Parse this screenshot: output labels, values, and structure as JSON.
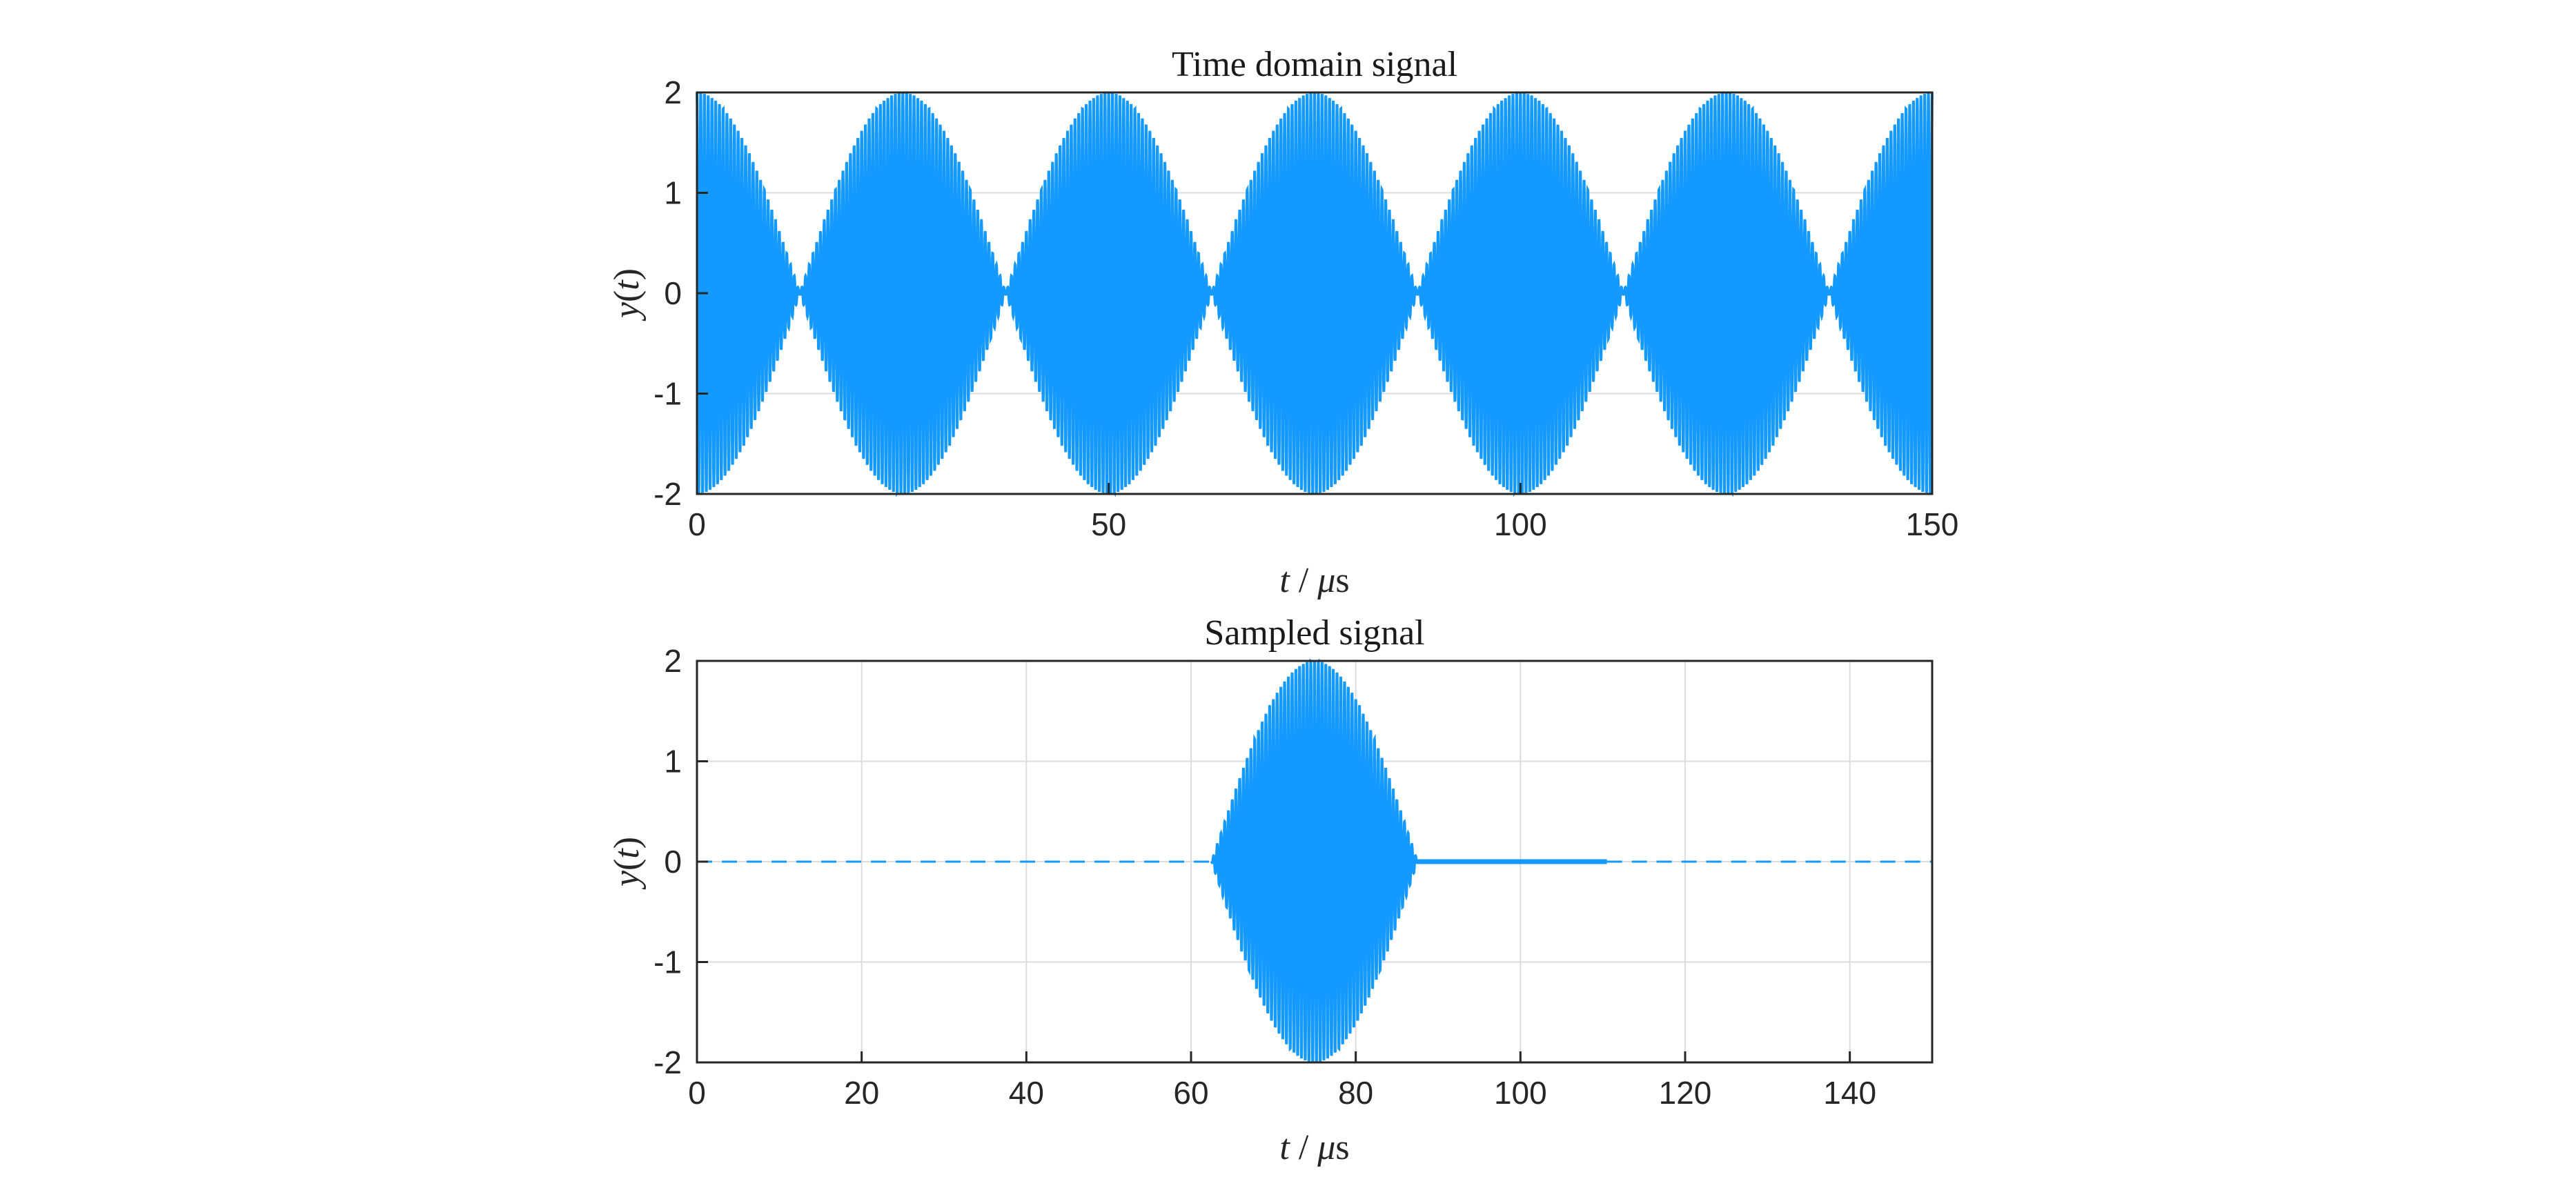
{
  "colors": {
    "signal": "#1499ff",
    "grid": "#dcdcdc",
    "axis": "#262626"
  },
  "chart_data": [
    {
      "type": "line",
      "title": "Time domain signal",
      "xlabel": {
        "var": "t",
        "sep": " / ",
        "unit_prefix": "μ",
        "unit": "s"
      },
      "ylabel": {
        "f": "y",
        "open": "(",
        "arg": "t",
        "close": ")"
      },
      "xlim": [
        0,
        150
      ],
      "ylim": [
        -2,
        2
      ],
      "xticks": [
        "0",
        "50",
        "100",
        "150"
      ],
      "xtick_values": [
        0,
        50,
        100,
        150
      ],
      "yticks": [
        "2",
        "1",
        "0",
        "-1",
        "-2"
      ],
      "ytick_values": [
        2,
        1,
        0,
        -1,
        -2
      ],
      "grid": true,
      "series": [
        {
          "description": "amplitude-modulated oscillation, envelope |2cos(2π·t/50)|",
          "envelope_amplitude": 2,
          "envelope_period_us": 50,
          "envelope_peaks_at_us": [
            0,
            25,
            50,
            75,
            100,
            125,
            150
          ],
          "carrier_cycles_per_us": 2.2
        }
      ]
    },
    {
      "type": "line",
      "title": "Sampled signal",
      "xlabel": {
        "var": "t",
        "sep": " / ",
        "unit_prefix": "μ",
        "unit": "s"
      },
      "ylabel": {
        "f": "y",
        "open": "(",
        "arg": "t",
        "close": ")"
      },
      "xlim": [
        0,
        150
      ],
      "ylim": [
        -2,
        2
      ],
      "xticks": [
        "0",
        "20",
        "40",
        "60",
        "80",
        "100",
        "120",
        "140"
      ],
      "xtick_values": [
        0,
        20,
        40,
        60,
        80,
        100,
        120,
        140
      ],
      "yticks": [
        "2",
        "1",
        "0",
        "-1",
        "-2"
      ],
      "ytick_values": [
        2,
        1,
        0,
        -1,
        -2
      ],
      "grid": true,
      "series": [
        {
          "description": "single sampled burst of the modulated signal",
          "burst_start_us": 62.5,
          "burst_end_us": 87.5,
          "burst_peak_us": 75,
          "burst_peak_amplitude": 2,
          "zero_segment_us": [
            87.5,
            110.5
          ],
          "dashed_baseline_us": [
            [
              0,
              62.5
            ],
            [
              110.5,
              150
            ]
          ],
          "baseline_value": 0
        }
      ]
    }
  ]
}
